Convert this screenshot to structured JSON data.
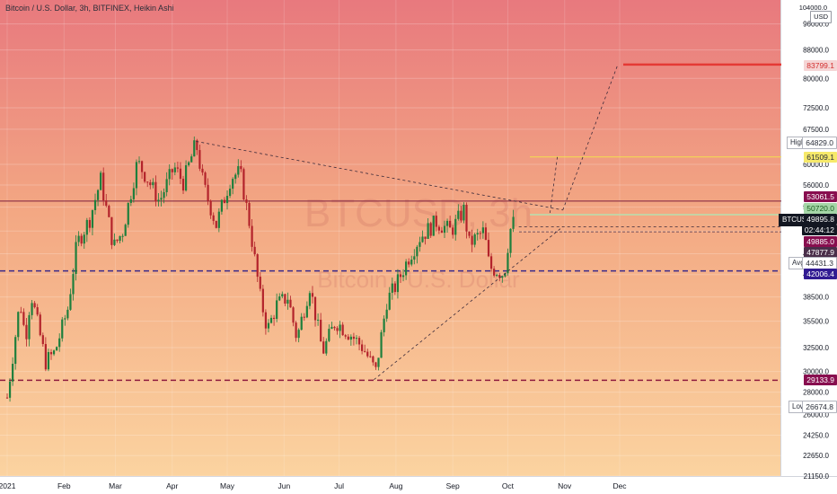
{
  "header": {
    "title": "Bitcoin / U.S. Dollar, 3h, BITFINEX, Heikin Ashi"
  },
  "watermark": {
    "symbol": "BTCUSD, 3h",
    "name": "Bitcoin / U.S. Dollar"
  },
  "axis": {
    "currency": "USD",
    "top_tick": "104000.0"
  },
  "tags": {
    "target": "83799.1",
    "high_label": "High",
    "high": "64829.0",
    "level_yellow": "61509.1",
    "level_53": "53061.5",
    "level_50": "50720.0",
    "symbol": "BTCUSD",
    "last_price": "49895.8",
    "countdown": "02:44:12",
    "level_49": "49885.0",
    "level_47": "47877.9",
    "avg_label": "Avg",
    "avg": "44431.3",
    "level_42": "42006.4",
    "level_29": "29133.9",
    "low_label": "Low",
    "low": "26674.8"
  },
  "colors": {
    "bull": "#1e7f3c",
    "bear": "#b3232b",
    "dash": "#3a2a8a",
    "target": "#e53935",
    "yellow": "#f4e04d"
  },
  "chart_data": {
    "type": "candlestick",
    "title": "Bitcoin / U.S. Dollar, 3h, BITFINEX, Heikin Ashi",
    "currency": "USD",
    "y_scale": "log",
    "ylim": [
      21150,
      104000
    ],
    "y_ticks": [
      "96000.0",
      "88000.0",
      "80000.0",
      "72500.0",
      "67500.0",
      "60000.0",
      "56000.0",
      "52000.0",
      "48000.0",
      "44500.0",
      "41500.0",
      "38500.0",
      "35500.0",
      "32500.0",
      "30000.0",
      "28000.0",
      "26000.0",
      "24250.0",
      "22650.0",
      "21150.0"
    ],
    "x_ticks": [
      "2021",
      "Feb",
      "Mar",
      "Apr",
      "May",
      "Jun",
      "Jul",
      "Aug",
      "Sep",
      "Oct",
      "Nov",
      "Dec"
    ],
    "x_tick_dates": [
      "2021-01-01",
      "2021-02-01",
      "2021-03-01",
      "2021-04-01",
      "2021-05-01",
      "2021-06-01",
      "2021-07-01",
      "2021-08-01",
      "2021-09-01",
      "2021-10-01",
      "2021-11-01",
      "2021-12-01"
    ],
    "price_path": [
      [
        "2021-01-01",
        27500
      ],
      [
        "2021-01-08",
        38000
      ],
      [
        "2021-01-11",
        33500
      ],
      [
        "2021-01-14",
        39000
      ],
      [
        "2021-01-22",
        31000
      ],
      [
        "2021-01-27",
        32000
      ],
      [
        "2021-02-03",
        37000
      ],
      [
        "2021-02-08",
        46000
      ],
      [
        "2021-02-15",
        50000
      ],
      [
        "2021-02-21",
        57000
      ],
      [
        "2021-02-28",
        45500
      ],
      [
        "2021-03-05",
        48000
      ],
      [
        "2021-03-13",
        60500
      ],
      [
        "2021-03-18",
        57500
      ],
      [
        "2021-03-25",
        53000
      ],
      [
        "2021-04-02",
        59500
      ],
      [
        "2021-04-07",
        56500
      ],
      [
        "2021-04-14",
        64500
      ],
      [
        "2021-04-18",
        56000
      ],
      [
        "2021-04-25",
        49000
      ],
      [
        "2021-05-03",
        57500
      ],
      [
        "2021-05-08",
        58500
      ],
      [
        "2021-05-13",
        49500
      ],
      [
        "2021-05-19",
        38500
      ],
      [
        "2021-05-23",
        34500
      ],
      [
        "2021-05-28",
        37500
      ],
      [
        "2021-06-03",
        38500
      ],
      [
        "2021-06-08",
        33500
      ],
      [
        "2021-06-15",
        40000
      ],
      [
        "2021-06-22",
        32000
      ],
      [
        "2021-06-29",
        35500
      ],
      [
        "2021-07-07",
        34000
      ],
      [
        "2021-07-14",
        32500
      ],
      [
        "2021-07-21",
        30000
      ],
      [
        "2021-07-27",
        38000
      ],
      [
        "2021-08-01",
        40000
      ],
      [
        "2021-08-08",
        44000
      ],
      [
        "2021-08-14",
        47000
      ],
      [
        "2021-08-23",
        49500
      ],
      [
        "2021-08-31",
        48000
      ],
      [
        "2021-09-07",
        51500
      ],
      [
        "2021-09-10",
        46000
      ],
      [
        "2021-09-18",
        48000
      ],
      [
        "2021-09-21",
        42500
      ],
      [
        "2021-09-26",
        42000
      ],
      [
        "2021-09-29",
        41500
      ],
      [
        "2021-10-02",
        48000
      ],
      [
        "2021-10-05",
        50000
      ]
    ],
    "levels": [
      {
        "label": "Avg",
        "value": 44431.3
      },
      {
        "label": "High",
        "value": 64829.0
      },
      {
        "label": "Low",
        "value": 26674.8
      },
      {
        "value": 29133.9
      },
      {
        "value": 42006.4
      },
      {
        "value": 53061.5
      },
      {
        "value": 50720.0
      },
      {
        "value": 61509.1
      },
      {
        "value": 83799.1
      }
    ],
    "last_price": 49895.8
  }
}
